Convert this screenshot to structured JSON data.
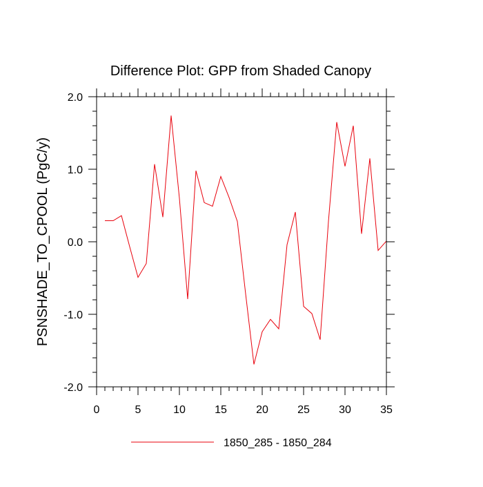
{
  "chart_data": {
    "type": "line",
    "title": "Difference Plot: GPP from Shaded Canopy",
    "xlabel": "",
    "ylabel": "PSNSHADE_TO_CPOOL  (PgC/y)",
    "xlim": [
      0,
      35
    ],
    "ylim": [
      -2.0,
      2.0
    ],
    "x_ticks": [
      0,
      5,
      10,
      15,
      20,
      25,
      30,
      35
    ],
    "x_tick_labels": [
      "0",
      "5",
      "10",
      "15",
      "20",
      "25",
      "30",
      "35"
    ],
    "y_ticks": [
      -2.0,
      -1.0,
      0.0,
      1.0,
      2.0
    ],
    "y_tick_labels": [
      "-2.0",
      "-1.0",
      "0.0",
      "1.0",
      "2.0"
    ],
    "x_minor_step": 1,
    "y_minor_step": 0.2,
    "grid": false,
    "legend_position": "bottom",
    "series": [
      {
        "name": "1850_285 - 1850_284",
        "color": "#e8000b",
        "x": [
          1,
          2,
          3,
          4,
          5,
          6,
          7,
          8,
          9,
          10,
          11,
          12,
          13,
          14,
          15,
          16,
          17,
          18,
          19,
          20,
          21,
          22,
          23,
          24,
          25,
          26,
          27,
          28,
          29,
          30,
          31,
          32,
          33,
          34,
          35
        ],
        "values": [
          0.29,
          0.29,
          0.36,
          -0.07,
          -0.49,
          -0.3,
          1.07,
          0.34,
          1.74,
          0.6,
          -0.79,
          0.98,
          0.54,
          0.49,
          0.9,
          0.61,
          0.28,
          -0.72,
          -1.69,
          -1.24,
          -1.07,
          -1.2,
          -0.04,
          0.41,
          -0.89,
          -0.99,
          -1.35,
          0.28,
          1.65,
          1.04,
          1.6,
          0.11,
          1.15,
          -0.12,
          0.01
        ]
      }
    ]
  }
}
